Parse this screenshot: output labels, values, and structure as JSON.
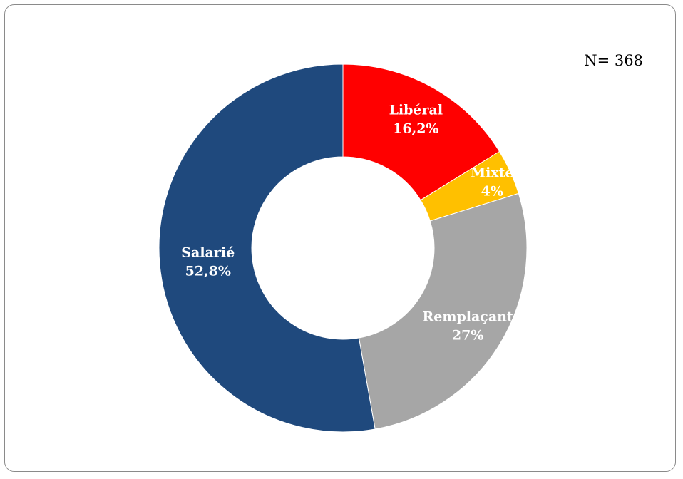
{
  "chart_data": {
    "type": "pie",
    "style": "donut",
    "sample_size": "N= 368",
    "slices": [
      {
        "name": "Libéral",
        "label": "16,2%",
        "value": 16.2,
        "color": "#ff0000"
      },
      {
        "name": "Mixte",
        "label": "4%",
        "value": 4,
        "color": "#ffc000"
      },
      {
        "name": "Remplaçant",
        "label": "27%",
        "value": 27,
        "color": "#a6a6a6"
      },
      {
        "name": "Salarié",
        "label": "52,8%",
        "value": 52.8,
        "color": "#1f497d"
      }
    ]
  }
}
